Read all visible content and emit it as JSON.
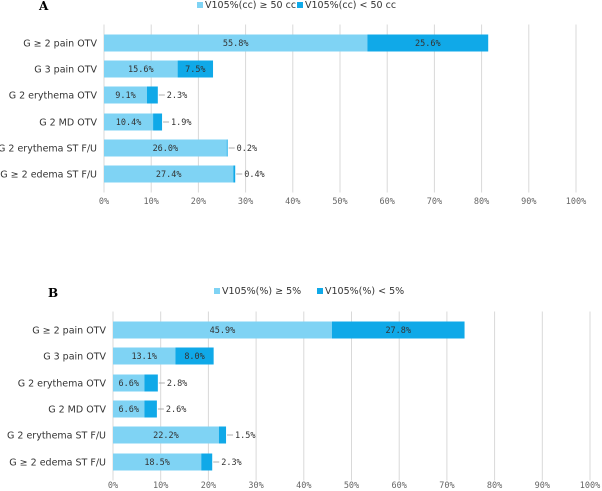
{
  "chart_data": [
    {
      "type": "bar",
      "orientation": "horizontal",
      "stacked": true,
      "panel_label": "A",
      "categories": [
        "G ≥ 2 pain OTV",
        "G 3 pain OTV",
        "G 2 erythema OTV",
        "G 2 MD OTV",
        "G 2 erythema ST F/U",
        "G ≥ 2 edema ST F/U"
      ],
      "series": [
        {
          "name": "V105%(cc) ≥ 50 cc",
          "values": [
            55.8,
            15.6,
            9.1,
            10.4,
            26.0,
            27.4
          ],
          "labels": [
            "55.8%",
            "15.6%",
            "9.1%",
            "10.4%",
            "26.0%",
            "27.4%"
          ],
          "color": "#7fd3f4"
        },
        {
          "name": "V105%(cc) < 50 cc",
          "values": [
            25.6,
            7.5,
            2.3,
            1.9,
            0.2,
            0.4
          ],
          "labels": [
            "25.6%",
            "7.5%",
            "2.3%",
            "1.9%",
            "0.2%",
            "0.4%"
          ],
          "color": "#10a9e8"
        }
      ],
      "xlim": [
        0,
        100
      ],
      "xticks": [
        "0%",
        "10%",
        "20%",
        "30%",
        "40%",
        "50%",
        "60%",
        "70%",
        "80%",
        "90%",
        "100%"
      ],
      "legend_position": "top-center",
      "grid": true
    },
    {
      "type": "bar",
      "orientation": "horizontal",
      "stacked": true,
      "panel_label": "B",
      "categories": [
        "G ≥ 2 pain OTV",
        "G 3 pain OTV",
        "G 2 erythema OTV",
        "G 2 MD OTV",
        "G 2 erythema ST F/U",
        "G ≥ 2 edema ST F/U"
      ],
      "series": [
        {
          "name": "V105%(%) ≥ 5%",
          "values": [
            45.9,
            13.1,
            6.6,
            6.6,
            22.2,
            18.5
          ],
          "labels": [
            "45.9%",
            "13.1%",
            "6.6%",
            "6.6%",
            "22.2%",
            "18.5%"
          ],
          "color": "#7fd3f4"
        },
        {
          "name": "V105%(%) < 5%",
          "values": [
            27.8,
            8.0,
            2.8,
            2.6,
            1.5,
            2.3
          ],
          "labels": [
            "27.8%",
            "8.0%",
            "2.8%",
            "2.6%",
            "1.5%",
            "2.3%"
          ],
          "color": "#10a9e8"
        }
      ],
      "xlim": [
        0,
        100
      ],
      "xticks": [
        "0%",
        "10%",
        "20%",
        "30%",
        "40%",
        "50%",
        "60%",
        "70%",
        "80%",
        "90%",
        "100%"
      ],
      "legend_position": "top-center",
      "grid": true
    }
  ]
}
